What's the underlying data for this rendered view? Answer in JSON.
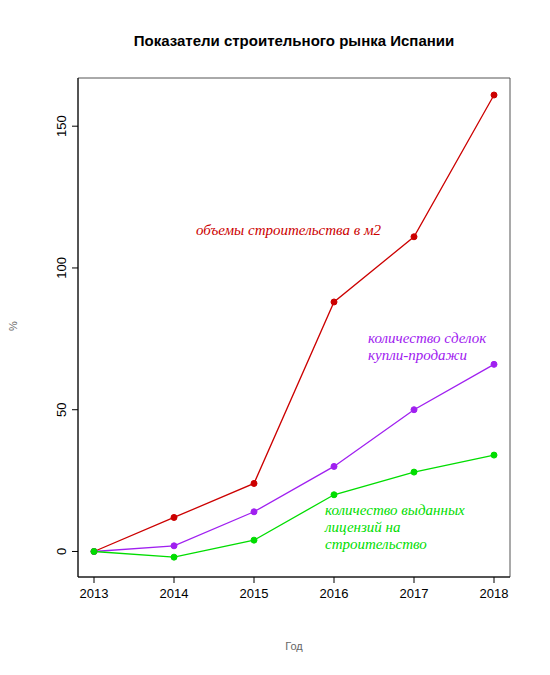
{
  "chart_data": {
    "type": "line",
    "title": "Показатели строительного рынка Испании",
    "x_label": "Год",
    "y_label": "%",
    "x": [
      2013,
      2014,
      2015,
      2016,
      2017,
      2018
    ],
    "series": [
      {
        "name": "объемы строительства в м2",
        "color": "#cc0000",
        "values": [
          0,
          12,
          24,
          88,
          111,
          161
        ],
        "marker": "circle"
      },
      {
        "name": "количество сделок купли-продажи",
        "color": "#a020f0",
        "values": [
          0,
          2,
          14,
          30,
          50,
          66
        ],
        "marker": "circle"
      },
      {
        "name": "количество выданных лицензий на строительство",
        "color": "#00dd00",
        "values": [
          0,
          -2,
          4,
          20,
          28,
          34
        ],
        "marker": "circle"
      }
    ],
    "xlim": [
      2012.8,
      2018.2
    ],
    "xticks": [
      2013,
      2014,
      2015,
      2016,
      2017,
      2018
    ],
    "ylim": [
      -9,
      167
    ],
    "yticks": [
      0,
      50,
      100,
      150
    ],
    "grid": false
  }
}
